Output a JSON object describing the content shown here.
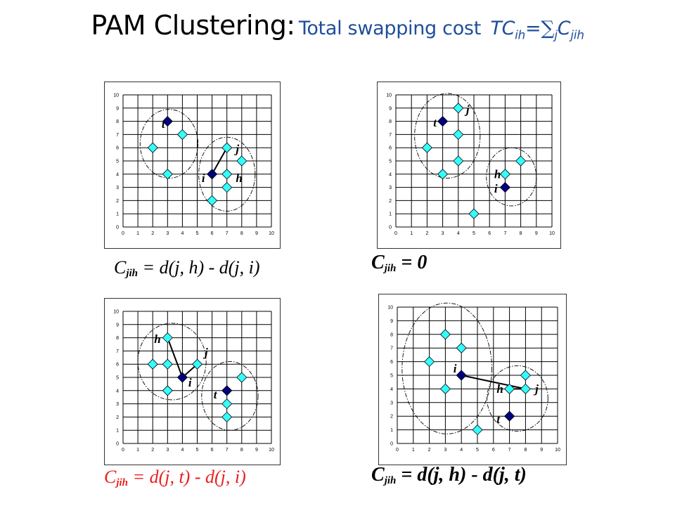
{
  "title": {
    "main": "PAM Clustering:",
    "sub": "Total swapping cost",
    "formula_lhs": "TC",
    "formula_lhs_sub": "ih",
    "equals": "=",
    "sigma": "∑",
    "sigma_sub": "j",
    "formula_rhs": "C",
    "formula_rhs_sub": "jih"
  },
  "colors": {
    "light_point": "#33ffff",
    "dark_point": "#000080",
    "formula_red": "#e8201e",
    "title_blue": "#1f4e9a"
  },
  "axis": {
    "x_ticks": [
      "0",
      "1",
      "2",
      "3",
      "4",
      "5",
      "6",
      "7",
      "8",
      "9",
      "10"
    ],
    "y_ticks": [
      "0",
      "1",
      "2",
      "3",
      "4",
      "5",
      "6",
      "7",
      "8",
      "9",
      "10"
    ]
  },
  "panels": [
    {
      "formula": {
        "c": "C",
        "sub": "jih",
        "rest": " = d(j, h) - d(j, i)"
      },
      "points_light": [
        [
          2,
          6
        ],
        [
          3,
          4
        ],
        [
          4,
          7
        ],
        [
          6,
          2
        ],
        [
          7,
          6
        ],
        [
          7,
          4
        ],
        [
          7,
          3
        ],
        [
          8,
          5
        ]
      ],
      "points_dark": [
        [
          3,
          8
        ],
        [
          6,
          4
        ]
      ],
      "labels": [
        {
          "text": "t",
          "x": 2.6,
          "y": 7.5
        },
        {
          "text": "j",
          "x": 7.6,
          "y": 5.6
        },
        {
          "text": "i",
          "x": 5.3,
          "y": 3.4
        },
        {
          "text": "h",
          "x": 7.6,
          "y": 3.4
        }
      ],
      "lines": [
        [
          6,
          4,
          7,
          6
        ]
      ],
      "ellipses": [
        {
          "cx": 3.1,
          "cy": 6.3,
          "rx": 1.95,
          "ry": 2.6
        },
        {
          "cx": 7.0,
          "cy": 4.0,
          "rx": 1.9,
          "ry": 2.8
        }
      ]
    },
    {
      "formula": {
        "c": "C",
        "sub": "jih",
        "rest": " = 0"
      },
      "points_light": [
        [
          2,
          6
        ],
        [
          3,
          4
        ],
        [
          4,
          9
        ],
        [
          4,
          7
        ],
        [
          4,
          5
        ],
        [
          5,
          1
        ],
        [
          7,
          4
        ],
        [
          8,
          5
        ]
      ],
      "points_dark": [
        [
          3,
          8
        ],
        [
          7,
          3
        ]
      ],
      "labels": [
        {
          "text": "t",
          "x": 2.4,
          "y": 7.6
        },
        {
          "text": "j",
          "x": 4.5,
          "y": 8.6
        },
        {
          "text": "h",
          "x": 6.3,
          "y": 3.7
        },
        {
          "text": "i",
          "x": 6.3,
          "y": 2.6
        }
      ],
      "lines": [],
      "ellipses": [
        {
          "cx": 3.3,
          "cy": 6.9,
          "rx": 2.1,
          "ry": 3.2
        },
        {
          "cx": 7.4,
          "cy": 3.8,
          "rx": 1.6,
          "ry": 2.2
        }
      ]
    },
    {
      "formula": {
        "c": "C",
        "sub": "jih",
        "rest": " = d(j, t) - d(j, i)"
      },
      "points_light": [
        [
          3,
          8
        ],
        [
          2,
          6
        ],
        [
          3,
          6
        ],
        [
          3,
          4
        ],
        [
          5,
          6
        ],
        [
          7,
          3
        ],
        [
          7,
          2
        ],
        [
          8,
          5
        ]
      ],
      "points_dark": [
        [
          4,
          5
        ],
        [
          7,
          4
        ]
      ],
      "labels": [
        {
          "text": "h",
          "x": 2.1,
          "y": 7.6
        },
        {
          "text": "j",
          "x": 5.5,
          "y": 6.6
        },
        {
          "text": "i",
          "x": 4.4,
          "y": 4.3
        },
        {
          "text": "t",
          "x": 6.1,
          "y": 3.4
        }
      ],
      "lines": [
        [
          3,
          8,
          4,
          5
        ],
        [
          4,
          5,
          5,
          6
        ]
      ],
      "ellipses": [
        {
          "cx": 3.3,
          "cy": 6.2,
          "rx": 2.3,
          "ry": 2.9
        },
        {
          "cx": 7.2,
          "cy": 3.6,
          "rx": 1.9,
          "ry": 2.6
        }
      ]
    },
    {
      "formula": {
        "c": "C",
        "sub": "jih",
        "rest": " = d(j, h) - d(j, t)"
      },
      "points_light": [
        [
          2,
          6
        ],
        [
          3,
          8
        ],
        [
          4,
          7
        ],
        [
          3,
          4
        ],
        [
          5,
          1
        ],
        [
          7,
          4
        ],
        [
          8,
          5
        ],
        [
          8,
          4
        ]
      ],
      "points_dark": [
        [
          4,
          5
        ],
        [
          7,
          2
        ]
      ],
      "labels": [
        {
          "text": "i",
          "x": 3.5,
          "y": 5.2
        },
        {
          "text": "h",
          "x": 6.2,
          "y": 3.7
        },
        {
          "text": "j",
          "x": 8.6,
          "y": 3.7
        },
        {
          "text": "t",
          "x": 6.2,
          "y": 1.5
        }
      ],
      "lines": [
        [
          4,
          5,
          8,
          4
        ],
        [
          7,
          4,
          8,
          4
        ]
      ],
      "ellipses": [
        {
          "cx": 3.1,
          "cy": 5.5,
          "rx": 2.8,
          "ry": 4.8
        },
        {
          "cx": 7.5,
          "cy": 3.3,
          "rx": 1.9,
          "ry": 2.4
        }
      ]
    }
  ]
}
